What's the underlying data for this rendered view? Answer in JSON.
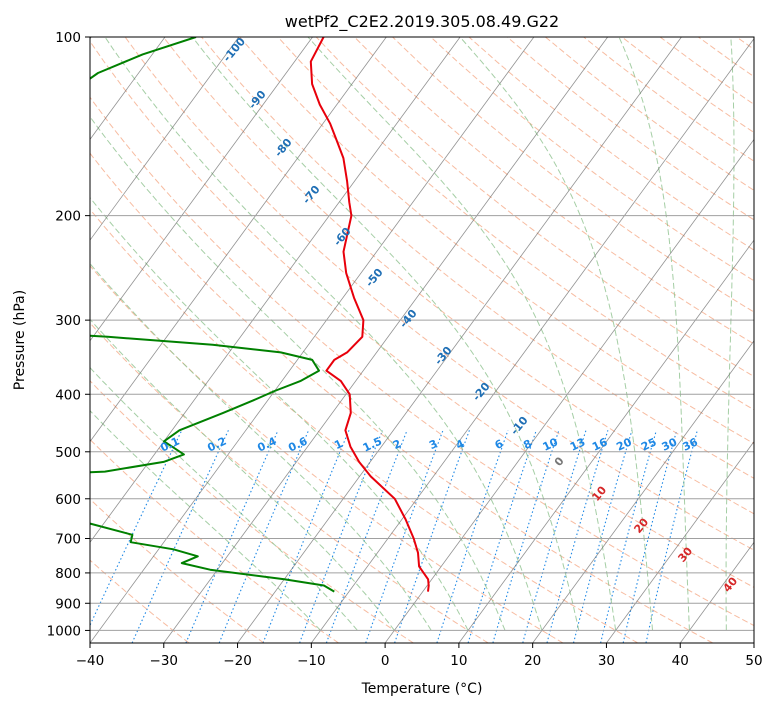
{
  "chart_data": {
    "type": "line",
    "title": "wetPf2_C2E2.2019.305.08.49.G22",
    "xlabel": "Temperature (°C)",
    "ylabel": "Pressure (hPa)",
    "xlim": [
      -40,
      50
    ],
    "ylim": [
      1050,
      100
    ],
    "y_scale": "log",
    "grid": true,
    "x_ticks": [
      -40,
      -30,
      -20,
      -10,
      0,
      10,
      20,
      30,
      40,
      50
    ],
    "y_ticks": [
      100,
      200,
      300,
      400,
      500,
      600,
      700,
      800,
      900,
      1000
    ],
    "series": [
      {
        "role": "temperature",
        "color": "#e8000b",
        "points": [
          {
            "p": 100,
            "t": -68.5
          },
          {
            "p": 110,
            "t": -67.8
          },
          {
            "p": 120,
            "t": -65.4
          },
          {
            "p": 130,
            "t": -62.3
          },
          {
            "p": 140,
            "t": -59.0
          },
          {
            "p": 150,
            "t": -56.3
          },
          {
            "p": 160,
            "t": -53.8
          },
          {
            "p": 175,
            "t": -51.0
          },
          {
            "p": 190,
            "t": -48.6
          },
          {
            "p": 200,
            "t": -47.0
          },
          {
            "p": 215,
            "t": -45.7
          },
          {
            "p": 230,
            "t": -44.5
          },
          {
            "p": 250,
            "t": -42.0
          },
          {
            "p": 275,
            "t": -38.5
          },
          {
            "p": 300,
            "t": -35.0
          },
          {
            "p": 320,
            "t": -33.5
          },
          {
            "p": 340,
            "t": -34.0
          },
          {
            "p": 350,
            "t": -35.0
          },
          {
            "p": 365,
            "t": -35.0
          },
          {
            "p": 380,
            "t": -32.0
          },
          {
            "p": 400,
            "t": -29.5
          },
          {
            "p": 430,
            "t": -27.5
          },
          {
            "p": 460,
            "t": -26.5
          },
          {
            "p": 490,
            "t": -24.2
          },
          {
            "p": 520,
            "t": -21.5
          },
          {
            "p": 550,
            "t": -18.5
          },
          {
            "p": 600,
            "t": -13.0
          },
          {
            "p": 650,
            "t": -9.5
          },
          {
            "p": 700,
            "t": -6.5
          },
          {
            "p": 740,
            "t": -4.5
          },
          {
            "p": 780,
            "t": -3.0
          },
          {
            "p": 820,
            "t": -0.5
          },
          {
            "p": 840,
            "t": 0.2
          },
          {
            "p": 860,
            "t": 0.7
          }
        ]
      },
      {
        "role": "dewpoint",
        "color": "#008000",
        "points": [
          {
            "p": 100,
            "t": -85.8
          },
          {
            "p": 107,
            "t": -91.3
          },
          {
            "p": 115,
            "t": -95.5
          },
          {
            "p": 125,
            "t": -97.5
          },
          {
            "p": 140,
            "t": -95.0
          },
          {
            "p": 150,
            "t": -94.5
          },
          {
            "p": 165,
            "t": -94.0
          },
          {
            "p": 180,
            "t": -94.7
          },
          {
            "p": 195,
            "t": -96.0
          },
          {
            "p": 205,
            "t": -94.5
          },
          {
            "p": 215,
            "t": -89.0
          },
          {
            "p": 230,
            "t": -85.8
          },
          {
            "p": 250,
            "t": -84.5
          },
          {
            "p": 270,
            "t": -84.0
          },
          {
            "p": 290,
            "t": -79.0
          },
          {
            "p": 300,
            "t": -78.0
          },
          {
            "p": 310,
            "t": -76.5
          },
          {
            "p": 315,
            "t": -77.5
          },
          {
            "p": 320,
            "t": -68.0
          },
          {
            "p": 330,
            "t": -53.0
          },
          {
            "p": 340,
            "t": -43.0
          },
          {
            "p": 350,
            "t": -38.0
          },
          {
            "p": 365,
            "t": -36.0
          },
          {
            "p": 380,
            "t": -37.5
          },
          {
            "p": 395,
            "t": -40.0
          },
          {
            "p": 410,
            "t": -42.0
          },
          {
            "p": 430,
            "t": -44.8
          },
          {
            "p": 460,
            "t": -49.0
          },
          {
            "p": 480,
            "t": -50.0
          },
          {
            "p": 505,
            "t": -46.0
          },
          {
            "p": 520,
            "t": -48.0
          },
          {
            "p": 540,
            "t": -55.0
          },
          {
            "p": 550,
            "t": -68.5
          },
          {
            "p": 570,
            "t": -69.0
          },
          {
            "p": 600,
            "t": -66.5
          },
          {
            "p": 640,
            "t": -60.0
          },
          {
            "p": 660,
            "t": -52.0
          },
          {
            "p": 690,
            "t": -45.0
          },
          {
            "p": 710,
            "t": -44.5
          },
          {
            "p": 730,
            "t": -38.0
          },
          {
            "p": 750,
            "t": -34.0
          },
          {
            "p": 770,
            "t": -35.5
          },
          {
            "p": 790,
            "t": -31.0
          },
          {
            "p": 820,
            "t": -20.0
          },
          {
            "p": 840,
            "t": -14.0
          },
          {
            "p": 860,
            "t": -12.0
          }
        ]
      }
    ],
    "dry_adiabat_labels": [
      "-100",
      "-90",
      "-80",
      "-70",
      "-60",
      "-50",
      "-40",
      "-30",
      "-20",
      "-10",
      "0",
      "10",
      "20",
      "30",
      "40"
    ],
    "mixing_ratio_labels": [
      "0.1",
      "0.2",
      "0.4",
      "0.6",
      "1",
      "1.5",
      "2",
      "3",
      "4",
      "6",
      "8",
      "10",
      "13",
      "16",
      "20",
      "25",
      "30",
      "36"
    ],
    "colors": {
      "isotherm": "#6e6e6e",
      "isobar": "#a0a0a0",
      "dry_adiabat": "#f4a582",
      "moist_adiabat": "#8fc28f",
      "mixing_ratio": "#1e88e5",
      "label_blue_dark": "#1f6fb5",
      "label_red": "#d62728",
      "label_gray": "#777777"
    }
  }
}
